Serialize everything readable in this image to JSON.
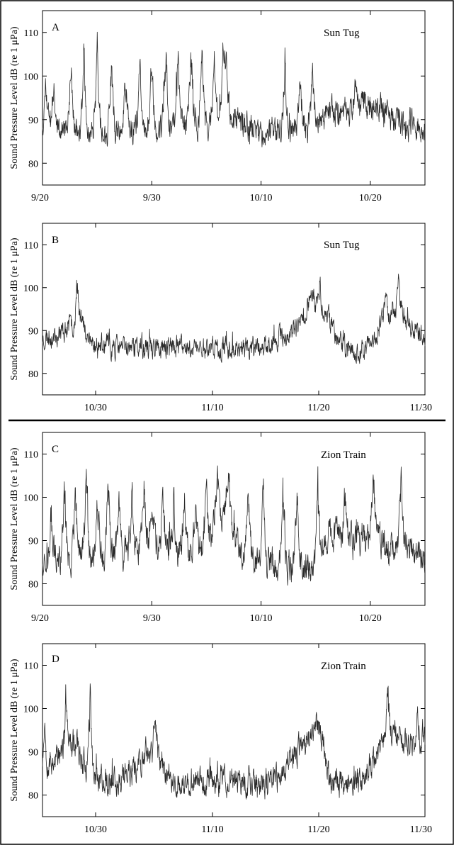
{
  "figure": {
    "colors": {
      "line": "#2a2a2a",
      "axis": "#000000",
      "background": "#ffffff"
    }
  },
  "chart_data": [
    {
      "type": "line",
      "panel": "A",
      "annotation": "Sun Tug",
      "xlabel": "",
      "ylabel": "Sound Pressure Level dB (re 1 μPa)",
      "ylim": [
        75,
        115
      ],
      "yticks": [
        80,
        90,
        100,
        110
      ],
      "xlim_days": [
        0,
        35
      ],
      "xticks": [
        {
          "day": 0,
          "label": "9/20"
        },
        {
          "day": 10,
          "label": "9/30"
        },
        {
          "day": 20,
          "label": "10/10"
        },
        {
          "day": 30,
          "label": "10/20"
        }
      ],
      "grid": false,
      "series": [
        {
          "baseline": [
            [
              0,
              88
            ],
            [
              3,
              87
            ],
            [
              7,
              87
            ],
            [
              10,
              88
            ],
            [
              13,
              89
            ],
            [
              16,
              89
            ],
            [
              17,
              90
            ],
            [
              18,
              89
            ],
            [
              20,
              87
            ],
            [
              22,
              87
            ],
            [
              24,
              88
            ],
            [
              26,
              91
            ],
            [
              29,
              92
            ],
            [
              31,
              93
            ],
            [
              32,
              90
            ],
            [
              35,
              88
            ]
          ],
          "noise": 2.6,
          "peaks": [
            [
              0.3,
              101
            ],
            [
              1,
              98
            ],
            [
              2.6,
              103
            ],
            [
              3.8,
              108
            ],
            [
              5,
              107
            ],
            [
              6.3,
              104
            ],
            [
              7.6,
              104
            ],
            [
              8.9,
              103
            ],
            [
              10,
              103
            ],
            [
              11.3,
              106
            ],
            [
              12.4,
              107
            ],
            [
              13.6,
              109
            ],
            [
              14.6,
              108
            ],
            [
              15.7,
              106
            ],
            [
              16.5,
              108
            ],
            [
              16.8,
              106
            ],
            [
              22.2,
              105
            ],
            [
              23.6,
              103
            ],
            [
              24.7,
              102
            ],
            [
              28.6,
              99
            ],
            [
              29.5,
              98
            ]
          ],
          "peak_width": 0.5,
          "seed": 11
        }
      ]
    },
    {
      "type": "line",
      "panel": "B",
      "annotation": "Sun Tug",
      "xlabel": "",
      "ylabel": "Sound Pressure Level dB (re 1 μPa)",
      "ylim": [
        75,
        115
      ],
      "yticks": [
        80,
        90,
        100,
        110
      ],
      "xlim_days": [
        35,
        71
      ],
      "xticks": [
        {
          "day": 40,
          "label": "10/30"
        },
        {
          "day": 51,
          "label": "11/10"
        },
        {
          "day": 61,
          "label": "11/20"
        },
        {
          "day": 71,
          "label": "11/30"
        }
      ],
      "grid": false,
      "series": [
        {
          "baseline": [
            [
              35,
              88
            ],
            [
              37,
              90
            ],
            [
              38.6,
              93
            ],
            [
              39.4,
              87
            ],
            [
              42,
              86
            ],
            [
              44,
              86
            ],
            [
              46,
              86
            ],
            [
              48,
              86
            ],
            [
              50,
              86
            ],
            [
              53,
              86
            ],
            [
              55,
              86
            ],
            [
              56,
              86
            ],
            [
              57,
              88
            ],
            [
              58,
              89
            ],
            [
              59,
              90
            ],
            [
              60.2,
              97
            ],
            [
              61,
              96
            ],
            [
              62,
              93
            ],
            [
              63,
              87
            ],
            [
              64,
              85
            ],
            [
              65,
              85
            ],
            [
              66,
              87
            ],
            [
              67,
              92
            ],
            [
              68,
              95
            ],
            [
              69,
              94
            ],
            [
              70,
              90
            ],
            [
              71,
              88
            ]
          ],
          "noise": 2.0,
          "peaks": [
            [
              38.3,
              101
            ],
            [
              60.3,
              101
            ],
            [
              61.1,
              101
            ],
            [
              67.3,
              101
            ],
            [
              68.5,
              106
            ]
          ],
          "peak_width": 0.4,
          "seed": 23
        }
      ]
    },
    {
      "type": "line",
      "panel": "C",
      "annotation": "Zion Train",
      "xlabel": "",
      "ylabel": "Sound Pressure Level dB (re 1 μPa)",
      "ylim": [
        75,
        115
      ],
      "yticks": [
        80,
        90,
        100,
        110
      ],
      "xlim_days": [
        0,
        35
      ],
      "xticks": [
        {
          "day": 0,
          "label": "9/20"
        },
        {
          "day": 10,
          "label": "9/30"
        },
        {
          "day": 20,
          "label": "10/10"
        },
        {
          "day": 30,
          "label": "10/20"
        }
      ],
      "grid": false,
      "series": [
        {
          "baseline": [
            [
              0,
              86
            ],
            [
              5,
              86
            ],
            [
              8,
              88
            ],
            [
              10,
              89
            ],
            [
              12,
              88
            ],
            [
              15,
              88
            ],
            [
              16,
              95
            ],
            [
              17,
              96
            ],
            [
              18,
              88
            ],
            [
              20,
              85
            ],
            [
              22,
              84
            ],
            [
              24,
              84
            ],
            [
              25,
              84
            ],
            [
              26,
              91
            ],
            [
              27,
              92
            ],
            [
              28,
              90
            ],
            [
              30,
              92
            ],
            [
              31,
              90
            ],
            [
              32,
              87
            ],
            [
              33,
              90
            ],
            [
              34,
              87
            ],
            [
              35,
              85
            ]
          ],
          "noise": 2.8,
          "peaks": [
            [
              0.8,
              97
            ],
            [
              2,
              105
            ],
            [
              3,
              105
            ],
            [
              4,
              107
            ],
            [
              5,
              105
            ],
            [
              6,
              104
            ],
            [
              7,
              105
            ],
            [
              8.2,
              104
            ],
            [
              9.3,
              104
            ],
            [
              10,
              101
            ],
            [
              11,
              103
            ],
            [
              12,
              102
            ],
            [
              13,
              103
            ],
            [
              14,
              102
            ],
            [
              15,
              105
            ],
            [
              16,
              108
            ],
            [
              17,
              107
            ],
            [
              18.8,
              106
            ],
            [
              20.2,
              108
            ],
            [
              22,
              105
            ],
            [
              23.3,
              106
            ],
            [
              25.2,
              105
            ],
            [
              27.7,
              104
            ],
            [
              30.3,
              107
            ],
            [
              32.8,
              106
            ]
          ],
          "peak_width": 0.45,
          "seed": 37
        }
      ]
    },
    {
      "type": "line",
      "panel": "D",
      "annotation": "Zion Train",
      "xlabel": "",
      "ylabel": "Sound Pressure Level dB (re 1 μPa)",
      "ylim": [
        75,
        115
      ],
      "yticks": [
        80,
        90,
        100,
        110
      ],
      "xlim_days": [
        35,
        71
      ],
      "xticks": [
        {
          "day": 40,
          "label": "10/30"
        },
        {
          "day": 51,
          "label": "11/10"
        },
        {
          "day": 61,
          "label": "11/20"
        },
        {
          "day": 71,
          "label": "11/30"
        }
      ],
      "grid": false,
      "series": [
        {
          "baseline": [
            [
              35,
              86
            ],
            [
              36,
              88
            ],
            [
              37,
              90
            ],
            [
              38,
              93
            ],
            [
              38.8,
              88
            ],
            [
              40,
              84
            ],
            [
              42,
              83
            ],
            [
              44,
              87
            ],
            [
              45,
              90
            ],
            [
              46,
              88
            ],
            [
              47,
              84
            ],
            [
              48,
              82
            ],
            [
              50,
              83
            ],
            [
              53,
              83
            ],
            [
              57,
              83
            ],
            [
              58,
              87
            ],
            [
              60,
              93
            ],
            [
              61,
              96
            ],
            [
              61.6,
              90
            ],
            [
              62,
              83
            ],
            [
              64,
              83
            ],
            [
              65,
              84
            ],
            [
              66,
              88
            ],
            [
              67,
              94
            ],
            [
              69,
              93
            ],
            [
              70,
              92
            ],
            [
              71,
              93
            ]
          ],
          "noise": 2.6,
          "peaks": [
            [
              35.2,
              102
            ],
            [
              37.2,
              103
            ],
            [
              39.5,
              107
            ],
            [
              45.6,
              102
            ],
            [
              60.6,
              100
            ],
            [
              67.5,
              106
            ],
            [
              70.3,
              103
            ]
          ],
          "peak_width": 0.35,
          "seed": 53
        }
      ]
    }
  ]
}
